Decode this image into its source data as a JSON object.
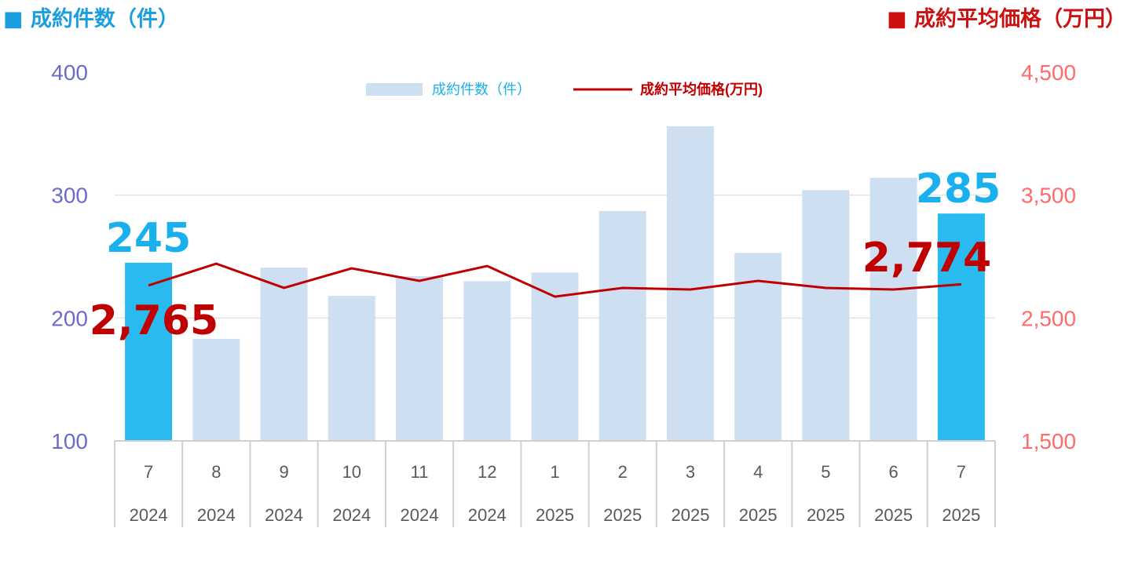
{
  "titles": {
    "left": "■ 成約件数（件）",
    "right": "■ 成約平均価格（万円）"
  },
  "chart_data": {
    "type": "bar+line",
    "categories": [
      {
        "month": "7",
        "year": "2024"
      },
      {
        "month": "8",
        "year": "2024"
      },
      {
        "month": "9",
        "year": "2024"
      },
      {
        "month": "10",
        "year": "2024"
      },
      {
        "month": "11",
        "year": "2024"
      },
      {
        "month": "12",
        "year": "2024"
      },
      {
        "month": "1",
        "year": "2025"
      },
      {
        "month": "2",
        "year": "2025"
      },
      {
        "month": "3",
        "year": "2025"
      },
      {
        "month": "4",
        "year": "2025"
      },
      {
        "month": "5",
        "year": "2025"
      },
      {
        "month": "6",
        "year": "2025"
      },
      {
        "month": "7",
        "year": "2025"
      }
    ],
    "series": [
      {
        "name": "成約件数（件）",
        "type": "bar",
        "axis": "left",
        "values": [
          245,
          183,
          241,
          218,
          234,
          230,
          237,
          287,
          356,
          253,
          304,
          314,
          285
        ],
        "highlight": [
          0,
          12
        ]
      },
      {
        "name": "成約平均価格(万円)",
        "type": "line",
        "axis": "right",
        "values": [
          2765,
          2942,
          2745,
          2904,
          2802,
          2923,
          2674,
          2745,
          2732,
          2802,
          2745,
          2732,
          2774
        ]
      }
    ],
    "data_labels": {
      "bar_first": "245",
      "bar_last": "285",
      "line_first": "2,765",
      "line_last": "2,774"
    },
    "left_axis": {
      "ylim": [
        100,
        400
      ],
      "ticks": [
        "100",
        "200",
        "300",
        "400"
      ]
    },
    "right_axis": {
      "ylim": [
        1500,
        4500
      ],
      "ticks": [
        "1,500",
        "2,500",
        "3,500",
        "4,500"
      ]
    },
    "legend": {
      "position": "top-center"
    },
    "grid": true,
    "colors": {
      "bar": "#cfdff2",
      "bar_highlight": "#29bbef",
      "line": "#c00000",
      "left_axis": "#6b6bcc",
      "right_axis": "#ff6b6b",
      "bar_label": "#1ab0ee",
      "line_label": "#c00000"
    }
  }
}
